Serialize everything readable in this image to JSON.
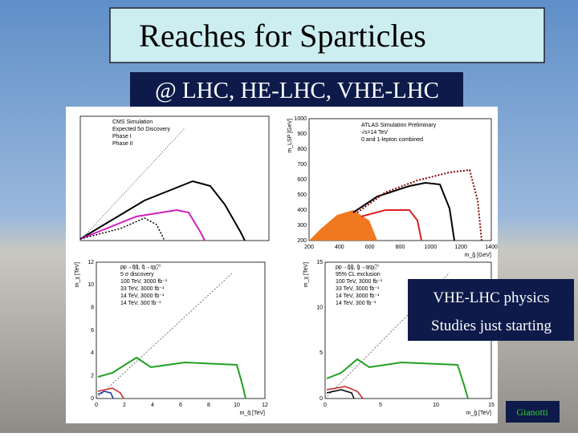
{
  "title": "Reaches for Sparticles",
  "subtitle": "@ LHC, HE-LHC, VHE-LHC",
  "callout": {
    "lines": [
      "VHE-LHC physics",
      "Studies just starting"
    ]
  },
  "footer": "Gianotti",
  "plots": [
    {
      "texts": [
        "CMS Simulation",
        "Expected 5σ Discovery",
        "Phase I",
        "Phase II"
      ]
    },
    {
      "texts": [
        "ATLAS Simulation Preliminary",
        "√s=14 TeV",
        "0 and 1-lepton combined"
      ],
      "xlabel": "m_g̃ [GeV]",
      "ylabel": "m_LSP [GeV]",
      "xticks": [
        "200",
        "400",
        "600",
        "800",
        "1000",
        "1200",
        "1400"
      ],
      "yticks": [
        "200",
        "300",
        "400",
        "500",
        "600",
        "700",
        "800",
        "900",
        "1000"
      ]
    },
    {
      "texts": [
        "pp→q̃q̃, q̃→qχ̃₁⁰",
        "5 σ discovery",
        "100 TeV, 3000 fb⁻¹",
        "33 TeV, 3000 fb⁻¹",
        "14 TeV, 3000 fb⁻¹",
        "14 TeV, 300 fb⁻¹"
      ],
      "xlabel": "m_q̃ [TeV]",
      "ylabel": "m_χ [TeV]",
      "xticks": [
        "0",
        "2",
        "4",
        "6",
        "8",
        "10",
        "12"
      ],
      "yticks": [
        "0",
        "2",
        "4",
        "6",
        "8",
        "10",
        "12"
      ]
    },
    {
      "texts": [
        "pp→g̃g̃, g̃→qqχ̃₁⁰",
        "95% CL exclusion",
        "100 TeV, 3000 fb⁻¹",
        "33 TeV, 3000 fb⁻¹",
        "14 TeV, 3000 fb⁻¹",
        "14 TeV, 300 fb⁻¹"
      ],
      "xlabel": "m_g̃ [TeV]",
      "ylabel": "m_χ [TeV]",
      "xticks": [
        "0",
        "5",
        "10",
        "15"
      ],
      "yticks": [
        "0",
        "5",
        "10",
        "15"
      ]
    }
  ]
}
